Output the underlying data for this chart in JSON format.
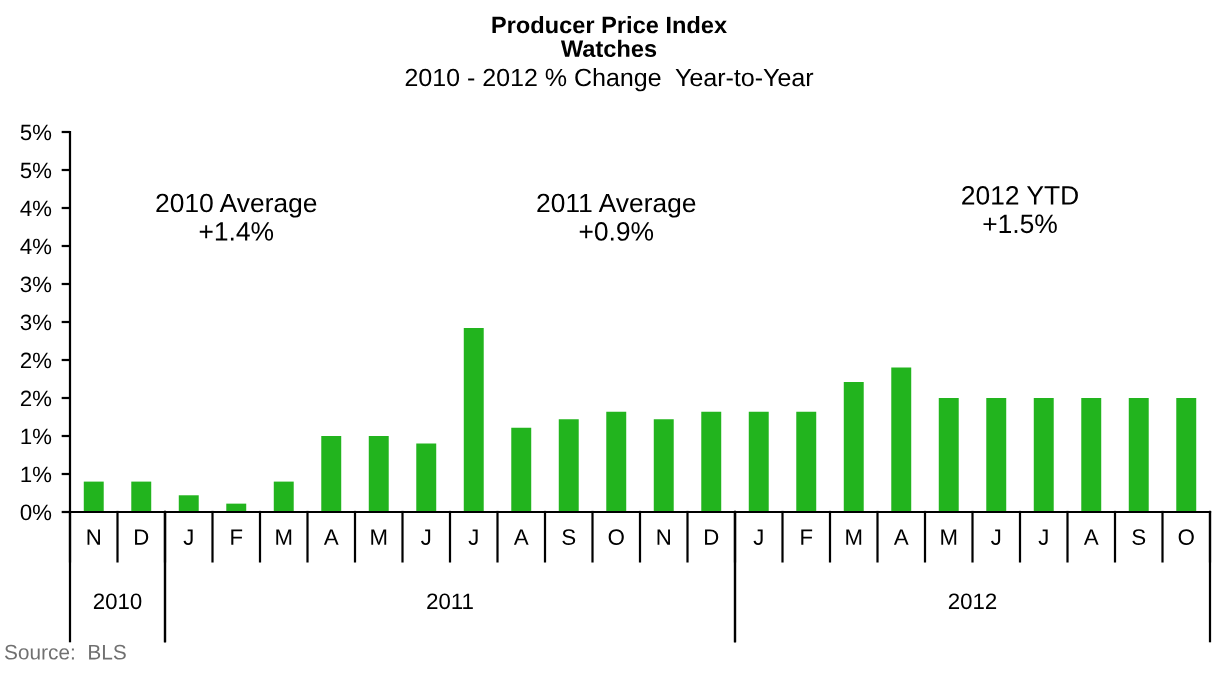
{
  "chart_data": {
    "type": "bar",
    "title": "Producer Price Index\nWatches",
    "subtitle": "2010 - 2012 % Change  Year-to-Year",
    "categories": [
      "N",
      "D",
      "J",
      "F",
      "M",
      "A",
      "M",
      "J",
      "J",
      "A",
      "S",
      "O",
      "N",
      "D",
      "J",
      "F",
      "M",
      "A",
      "M",
      "J",
      "J",
      "A",
      "S",
      "O"
    ],
    "series": [
      {
        "color": "#22b41e",
        "values": [
          0.4,
          0.4,
          0.22,
          0.11,
          0.4,
          1.0,
          1.0,
          0.9,
          2.42,
          1.11,
          1.22,
          1.32,
          1.22,
          1.32,
          1.32,
          1.32,
          1.71,
          1.9,
          1.5,
          1.5,
          1.5,
          1.5,
          1.5,
          1.5
        ]
      }
    ],
    "ylim": [
      0,
      5
    ],
    "yticks": [
      {
        "value": 0,
        "label": "0%"
      },
      {
        "value": 0.5,
        "label": "1%"
      },
      {
        "value": 1,
        "label": "1%"
      },
      {
        "value": 1.5,
        "label": "2%"
      },
      {
        "value": 2,
        "label": "2%"
      },
      {
        "value": 2.5,
        "label": "3%"
      },
      {
        "value": 3,
        "label": "3%"
      },
      {
        "value": 3.5,
        "label": "4%"
      },
      {
        "value": 4,
        "label": "4%"
      },
      {
        "value": 4.5,
        "label": "5%"
      },
      {
        "value": 5,
        "label": "5%"
      }
    ],
    "grid": false,
    "annotations": [
      "2010 Average\n+1.4%",
      "2011 Average\n+0.9%",
      "2012 YTD\n+1.5%",
      "2010",
      "2011",
      "2012",
      "Source:  BLS"
    ]
  }
}
